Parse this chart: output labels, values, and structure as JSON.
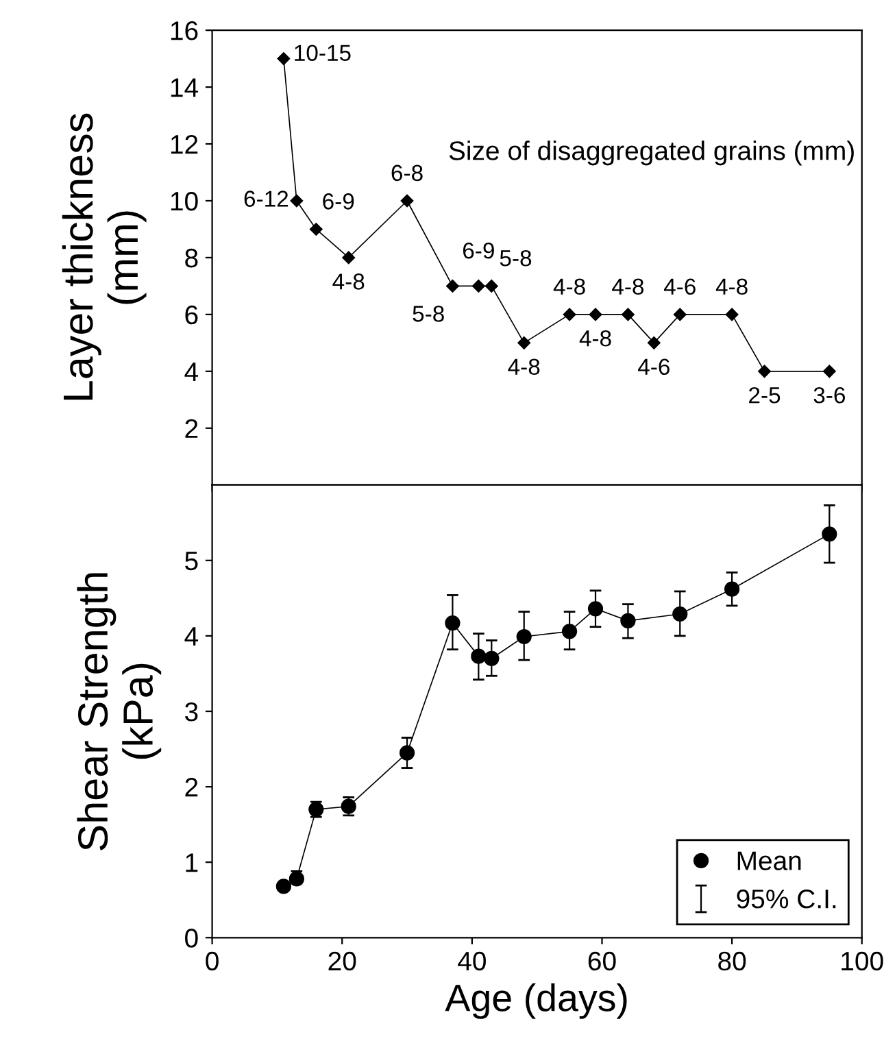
{
  "chart_data": [
    {
      "type": "line",
      "ylabel": "Layer thickness\n(mm)",
      "xlim": [
        0,
        100
      ],
      "xticks": [
        0,
        20,
        40,
        60,
        80,
        100
      ],
      "ylim": [
        0,
        16
      ],
      "yticks": [
        2,
        4,
        6,
        8,
        10,
        12,
        14,
        16
      ],
      "tick_labels": "y",
      "marker": "diamond",
      "grid": false,
      "legend": false,
      "annotations": [
        "Size of disaggregated grains (mm)"
      ],
      "series": [
        {
          "color": "#000000",
          "x": [
            11,
            13,
            16,
            21,
            30,
            37,
            41,
            43,
            48,
            55,
            59,
            64,
            68,
            72,
            80,
            85,
            95
          ],
          "values": [
            15,
            10,
            9,
            8,
            10,
            7,
            7,
            7,
            5,
            6,
            6,
            6,
            5,
            6,
            6,
            4,
            4
          ],
          "value_labels": [
            "10-15",
            "6-12",
            "6-9",
            "4-8",
            "6-8",
            "5-8",
            "6-9",
            "5-8",
            "4-8",
            "4-8",
            "4-8",
            "4-8",
            "4-6",
            "4-6",
            "4-8",
            "2-5",
            "3-6"
          ]
        }
      ]
    },
    {
      "type": "line",
      "xlabel": "Age (days)",
      "ylabel": "Shear Strength\n(kPa)",
      "xlim": [
        0,
        100
      ],
      "xticks": [
        0,
        20,
        40,
        60,
        80,
        100
      ],
      "ylim": [
        0,
        6
      ],
      "yticks": [
        0,
        1,
        2,
        3,
        4,
        5
      ],
      "marker": "circle",
      "grid": false,
      "legend": "bottom right",
      "annotations": [
        "95% C.I."
      ],
      "series": [
        {
          "name": "Mean",
          "color": "#000000",
          "x": [
            11,
            13,
            16,
            21,
            30,
            37,
            41,
            43,
            48,
            55,
            59,
            64,
            72,
            80,
            95
          ],
          "values": [
            0.68,
            0.78,
            1.7,
            1.74,
            2.45,
            4.17,
            3.73,
            3.7,
            3.99,
            4.06,
            4.36,
            4.2,
            4.29,
            4.62,
            5.35
          ],
          "errors": [
            [
              0.64,
              0.72
            ],
            [
              0.72,
              0.88
            ],
            [
              1.6,
              1.8
            ],
            [
              1.62,
              1.86
            ],
            [
              2.25,
              2.65
            ],
            [
              3.82,
              4.54
            ],
            [
              3.42,
              4.03
            ],
            [
              3.47,
              3.94
            ],
            [
              3.68,
              4.32
            ],
            [
              3.82,
              4.32
            ],
            [
              4.12,
              4.6
            ],
            [
              3.97,
              4.42
            ],
            [
              4.0,
              4.59
            ],
            [
              4.4,
              4.84
            ],
            [
              4.97,
              5.73
            ]
          ]
        }
      ]
    }
  ]
}
